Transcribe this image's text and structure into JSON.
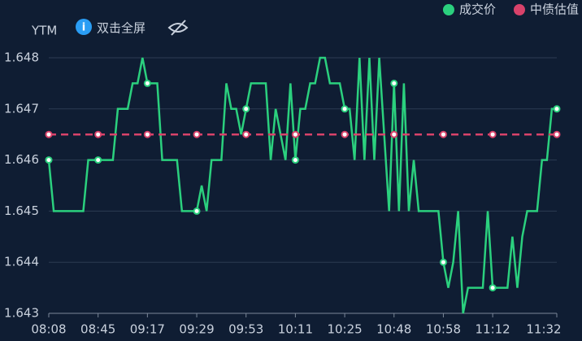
{
  "chart_data": {
    "type": "line",
    "y_label": "YTM",
    "button": "双击全屏",
    "categories": [
      "08:08",
      null,
      null,
      null,
      null,
      null,
      null,
      null,
      null,
      null,
      "08:45",
      null,
      null,
      null,
      null,
      null,
      null,
      null,
      null,
      null,
      "09:17",
      null,
      null,
      null,
      null,
      null,
      null,
      null,
      null,
      null,
      "09:29",
      null,
      null,
      null,
      null,
      null,
      null,
      null,
      null,
      null,
      "09:53",
      null,
      null,
      null,
      null,
      null,
      null,
      null,
      null,
      null,
      "10:11",
      null,
      null,
      null,
      null,
      null,
      null,
      null,
      null,
      null,
      "10:25",
      null,
      null,
      null,
      null,
      null,
      null,
      null,
      null,
      null,
      "10:48",
      null,
      null,
      null,
      null,
      null,
      null,
      null,
      null,
      null,
      "10:58",
      null,
      null,
      null,
      null,
      null,
      null,
      null,
      null,
      null,
      "11:12",
      null,
      null,
      null,
      null,
      null,
      null,
      null,
      null,
      null,
      null,
      null,
      null,
      "11:32"
    ],
    "series": [
      {
        "name": "成交价",
        "color": "#2bd07e",
        "dashed": false,
        "values": [
          1.646,
          1.645,
          1.645,
          1.645,
          1.645,
          1.645,
          1.645,
          1.645,
          1.646,
          1.646,
          1.646,
          1.646,
          1.646,
          1.646,
          1.647,
          1.647,
          1.647,
          1.6475,
          1.6475,
          1.648,
          1.6475,
          1.6475,
          1.6475,
          1.646,
          1.646,
          1.646,
          1.646,
          1.645,
          1.645,
          1.645,
          1.645,
          1.6455,
          1.645,
          1.646,
          1.646,
          1.646,
          1.6475,
          1.647,
          1.647,
          1.6465,
          1.647,
          1.6475,
          1.6475,
          1.6475,
          1.6475,
          1.646,
          1.647,
          1.6465,
          1.646,
          1.6475,
          1.646,
          1.647,
          1.647,
          1.6475,
          1.6475,
          1.648,
          1.648,
          1.6475,
          1.6475,
          1.6475,
          1.647,
          1.647,
          1.646,
          1.648,
          1.646,
          1.648,
          1.646,
          1.648,
          1.6465,
          1.645,
          1.6475,
          1.645,
          1.6475,
          1.645,
          1.646,
          1.645,
          1.645,
          1.645,
          1.645,
          1.645,
          1.644,
          1.6435,
          1.644,
          1.645,
          1.643,
          1.6435,
          1.6435,
          1.6435,
          1.6435,
          1.645,
          1.6435,
          1.6435,
          1.6435,
          1.6435,
          1.6445,
          1.6435,
          1.6445,
          1.645,
          1.645,
          1.645,
          1.646,
          1.646,
          1.647,
          1.647
        ]
      },
      {
        "name": "中债估值",
        "color": "#d8426a",
        "dashed": true,
        "values": [
          1.6465,
          1.6465,
          1.6465,
          1.6465,
          1.6465,
          1.6465,
          1.6465,
          1.6465,
          1.6465,
          1.6465,
          1.6465,
          1.6465,
          1.6465,
          1.6465,
          1.6465,
          1.6465,
          1.6465,
          1.6465,
          1.6465,
          1.6465,
          1.6465,
          1.6465,
          1.6465,
          1.6465,
          1.6465,
          1.6465,
          1.6465,
          1.6465,
          1.6465,
          1.6465,
          1.6465,
          1.6465,
          1.6465,
          1.6465,
          1.6465,
          1.6465,
          1.6465,
          1.6465,
          1.6465,
          1.6465,
          1.6465,
          1.6465,
          1.6465,
          1.6465,
          1.6465,
          1.6465,
          1.6465,
          1.6465,
          1.6465,
          1.6465,
          1.6465,
          1.6465,
          1.6465,
          1.6465,
          1.6465,
          1.6465,
          1.6465,
          1.6465,
          1.6465,
          1.6465,
          1.6465,
          1.6465,
          1.6465,
          1.6465,
          1.6465,
          1.6465,
          1.6465,
          1.6465,
          1.6465,
          1.6465,
          1.6465,
          1.6465,
          1.6465,
          1.6465,
          1.6465,
          1.6465,
          1.6465,
          1.6465,
          1.6465,
          1.6465,
          1.6465,
          1.6465,
          1.6465,
          1.6465,
          1.6465,
          1.6465,
          1.6465,
          1.6465,
          1.6465,
          1.6465,
          1.6465,
          1.6465,
          1.6465,
          1.6465,
          1.6465,
          1.6465,
          1.6465,
          1.6465,
          1.6465,
          1.6465,
          1.6465,
          1.6465,
          1.6465,
          1.6465
        ]
      }
    ],
    "ylim": [
      1.643,
      1.648
    ],
    "yticks": [
      1.643,
      1.644,
      1.645,
      1.646,
      1.647,
      1.648
    ],
    "grid": true
  }
}
